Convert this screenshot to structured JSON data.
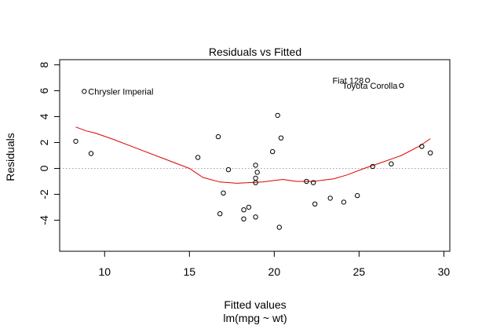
{
  "chart_data": {
    "type": "scatter",
    "title": "Residuals vs Fitted",
    "xlabel": "Fitted values",
    "xsublabel": "lm(mpg ~ wt)",
    "ylabel": "Residuals",
    "xlim": [
      7.35,
      30.35
    ],
    "ylim": [
      -6.4,
      8.4
    ],
    "xticks": [
      10,
      15,
      20,
      25,
      30
    ],
    "yticks": [
      -4,
      -2,
      0,
      2,
      4,
      6,
      8
    ],
    "xtick_labels": [
      "10",
      "15",
      "20",
      "25",
      "30"
    ],
    "ytick_labels": [
      "-4",
      "-2",
      "0",
      "2",
      "4",
      "6",
      "8"
    ],
    "grid": false,
    "reference_line": {
      "y": 0,
      "color": "#a0a0a0",
      "style": "dotted"
    },
    "point_color": "#000000",
    "smooth_color": "#dd0000",
    "points": [
      [
        8.3,
        2.1
      ],
      [
        9.2,
        1.15
      ],
      [
        8.8,
        5.95
      ],
      [
        15.5,
        0.85
      ],
      [
        16.7,
        2.45
      ],
      [
        16.8,
        -3.5
      ],
      [
        17.0,
        -1.9
      ],
      [
        17.3,
        -0.1
      ],
      [
        18.2,
        -3.9
      ],
      [
        18.2,
        -3.2
      ],
      [
        18.5,
        -3.0
      ],
      [
        18.9,
        -3.75
      ],
      [
        18.9,
        0.25
      ],
      [
        19.0,
        -0.3
      ],
      [
        18.9,
        -0.75
      ],
      [
        18.9,
        -1.1
      ],
      [
        19.9,
        1.3
      ],
      [
        20.2,
        4.1
      ],
      [
        20.4,
        2.35
      ],
      [
        20.3,
        -4.55
      ],
      [
        21.9,
        -1.0
      ],
      [
        22.3,
        -1.1
      ],
      [
        22.4,
        -2.75
      ],
      [
        23.3,
        -2.3
      ],
      [
        24.1,
        -2.6
      ],
      [
        24.9,
        -2.1
      ],
      [
        25.5,
        6.8
      ],
      [
        25.8,
        0.15
      ],
      [
        26.9,
        0.35
      ],
      [
        27.5,
        6.4
      ],
      [
        28.7,
        1.7
      ],
      [
        29.2,
        1.2
      ]
    ],
    "smooth_line": [
      [
        8.3,
        3.2
      ],
      [
        8.9,
        2.9
      ],
      [
        9.4,
        2.75
      ],
      [
        10.5,
        2.25
      ],
      [
        12.0,
        1.5
      ],
      [
        13.5,
        0.75
      ],
      [
        15.0,
        0.0
      ],
      [
        15.8,
        -0.7
      ],
      [
        16.8,
        -1.05
      ],
      [
        17.8,
        -1.15
      ],
      [
        18.5,
        -1.1
      ],
      [
        19.3,
        -1.05
      ],
      [
        19.9,
        -0.95
      ],
      [
        20.5,
        -0.85
      ],
      [
        21.3,
        -1.0
      ],
      [
        22.3,
        -1.0
      ],
      [
        23.5,
        -0.8
      ],
      [
        24.3,
        -0.5
      ],
      [
        25.3,
        0.0
      ],
      [
        26.3,
        0.45
      ],
      [
        27.5,
        1.0
      ],
      [
        28.6,
        1.75
      ],
      [
        29.2,
        2.3
      ]
    ],
    "annotations": [
      {
        "label": "Chrysler Imperial",
        "x": 8.8,
        "y": 5.95,
        "side": "right"
      },
      {
        "label": "Fiat 128",
        "x": 25.5,
        "y": 6.8,
        "side": "left"
      },
      {
        "label": "Toyota Corolla",
        "x": 27.5,
        "y": 6.4,
        "side": "left"
      }
    ]
  }
}
